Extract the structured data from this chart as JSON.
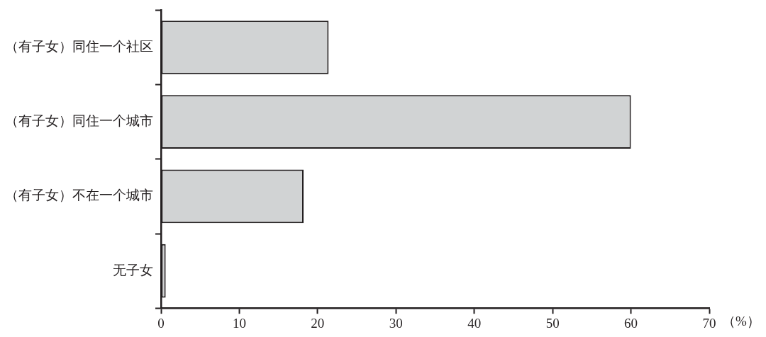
{
  "chart_data": {
    "type": "bar",
    "orientation": "horizontal",
    "categories": [
      "（有子女）同住一个社区",
      "（有子女）同住一个城市",
      "（有子女）不在一个城市",
      "无子女"
    ],
    "values": [
      21.4,
      60,
      18.2,
      0.6
    ],
    "color": "#d1d3d4",
    "xlim": [
      0,
      70
    ],
    "xticks": [
      0,
      10,
      20,
      30,
      40,
      50,
      60,
      70
    ],
    "xlabel": "（%）",
    "grid": false,
    "legend": false
  }
}
